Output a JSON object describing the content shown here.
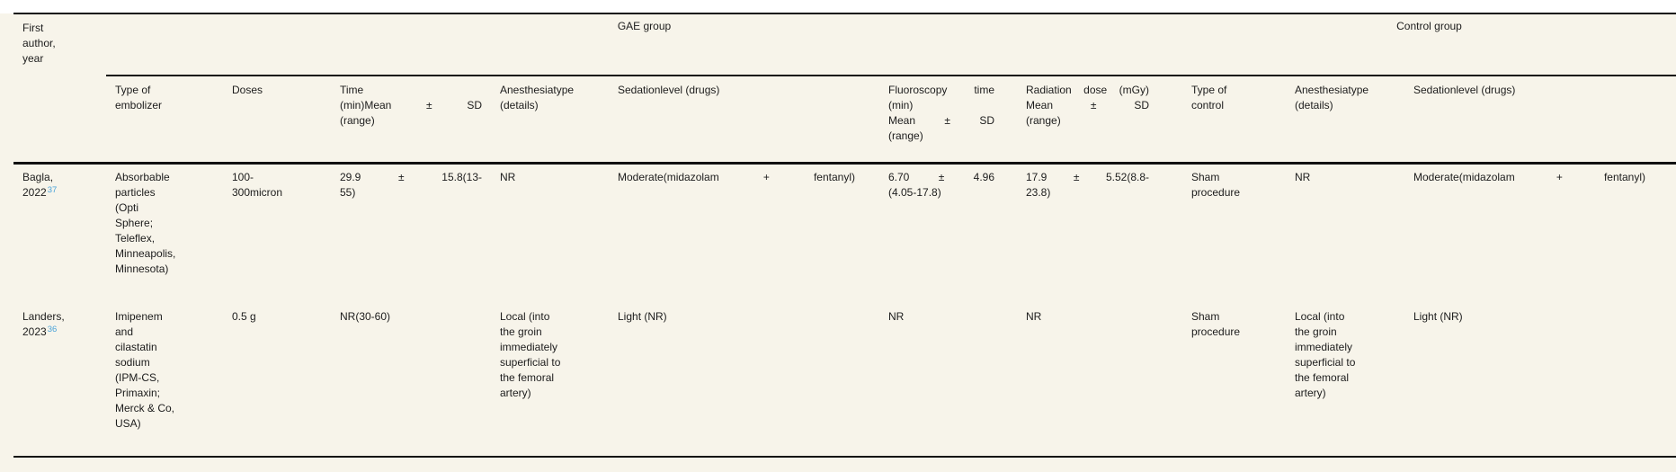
{
  "colors": {
    "page_background": "#ffffff",
    "table_background": "#f7f4ea",
    "text": "#1c1c1c",
    "rule": "#111111",
    "reference_link": "#4aa3d9"
  },
  "table": {
    "row_header": "First\nauthor,\nyear",
    "groups": {
      "gae": "GAE group",
      "control": "Control group"
    },
    "columns": [
      "Type of\nembolizer",
      "Doses",
      "Time\n(min)Mean ± SD\n(range)",
      "Anesthesiatype\n(details)",
      "Sedationlevel (drugs)",
      "Fluoroscopy time\n(min)\nMean ± SD\n(range)",
      "Radiation dose (mGy)\nMean ± SD\n(range)",
      "Type of\ncontrol",
      "Anesthesiatype\n(details)",
      "Sedationlevel (drugs)"
    ],
    "rows": [
      {
        "author": "Bagla,\n2022",
        "ref": "37",
        "cells": [
          "Absorbable\nparticles\n(Opti\nSphere;\nTeleflex,\nMinneapolis,\nMinnesota)",
          "100-\n300micron",
          "29.9 ± 15.8(13-\n55)",
          "NR",
          "Moderate(midazolam + fentanyl)",
          "6.70 ± 4.96\n(4.05-17.8)",
          "17.9 ± 5.52(8.8-\n23.8)",
          "Sham\nprocedure",
          "NR",
          "Moderate(midazolam + fentanyl)"
        ]
      },
      {
        "author": "Landers,\n2023",
        "ref": "36",
        "cells": [
          "Imipenem\nand\ncilastatin\nsodium\n(IPM-CS,\nPrimaxin;\nMerck & Co,\nUSA)",
          "0.5 g",
          "NR(30-60)",
          "Local (into\nthe groin\nimmediately\nsuperficial to\nthe femoral\nartery)",
          "Light (NR)",
          "NR",
          "NR",
          "Sham\nprocedure",
          "Local (into\nthe groin\nimmediately\nsuperficial to\nthe femoral\nartery)",
          "Light (NR)"
        ]
      }
    ]
  }
}
